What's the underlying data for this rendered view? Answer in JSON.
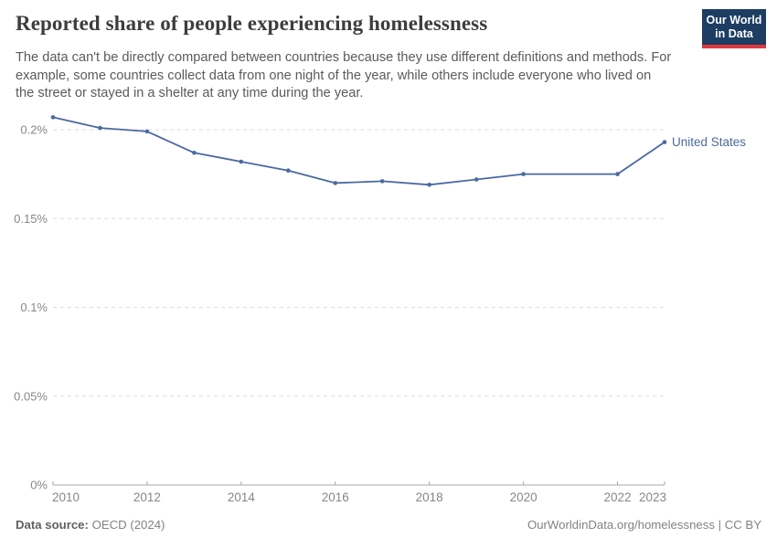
{
  "header": {
    "title": "Reported share of people experiencing homelessness",
    "subtitle_lines": [
      "The data can't be directly compared between countries because they use different definitions and methods. For",
      "example, some countries collect data from one night of the year, while others include everyone who lived on",
      "the street or stayed in a shelter at any time during the year."
    ],
    "logo": {
      "line1": "Our World",
      "line2": "in Data"
    }
  },
  "chart_data": {
    "type": "line",
    "title": "Reported share of people experiencing homelessness",
    "unit": "%",
    "x": [
      2010,
      2011,
      2012,
      2013,
      2014,
      2015,
      2016,
      2017,
      2018,
      2019,
      2020,
      2022,
      2023
    ],
    "series": [
      {
        "name": "United States",
        "color": "#4a69a2",
        "values": [
          0.207,
          0.201,
          0.199,
          0.187,
          0.182,
          0.177,
          0.17,
          0.171,
          0.169,
          0.172,
          0.175,
          0.175,
          0.193
        ]
      }
    ],
    "missing_years": [
      2021
    ],
    "x_ticks": [
      2010,
      2012,
      2014,
      2016,
      2018,
      2020,
      2022,
      2023
    ],
    "y_ticks": [
      {
        "value": 0,
        "label": "0%"
      },
      {
        "value": 0.05,
        "label": "0.05%"
      },
      {
        "value": 0.1,
        "label": "0.1%"
      },
      {
        "value": 0.15,
        "label": "0.15%"
      },
      {
        "value": 0.2,
        "label": "0.2%"
      }
    ],
    "xlim": [
      2010,
      2023
    ],
    "ylim": [
      0,
      0.2
    ],
    "grid": "dashed horizontal gridlines",
    "legend_position": "line-end label"
  },
  "footer": {
    "source_label": "Data source:",
    "source_value": "OECD (2024)",
    "license": "OurWorldinData.org/homelessness | CC BY"
  },
  "colors": {
    "line": "#4a69a2",
    "entity_label": "#4c6a9c",
    "grid": "#dedede",
    "axis": "#a8a8a8",
    "tick_label": "#878787",
    "title": "#3d3d3d",
    "subtitle": "#5b5b5b",
    "footer": "#828282",
    "logo_bg": "#1d3d63",
    "logo_accent": "#e0373f"
  }
}
